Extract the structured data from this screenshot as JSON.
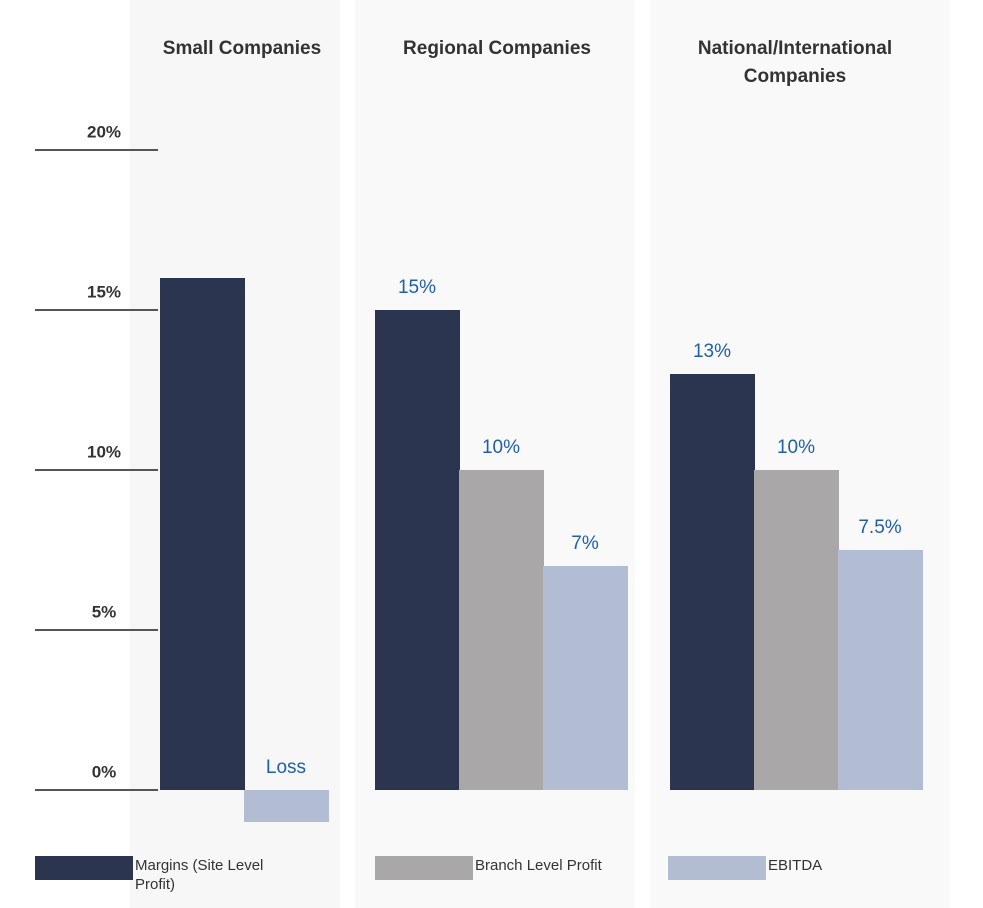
{
  "chart_data": {
    "type": "bar",
    "categories": [
      "Small Companies",
      "Regional Companies",
      "National/International Companies"
    ],
    "series": [
      {
        "name": "Margins (Site Level Profit)",
        "color": "#2b3550",
        "values": [
          16,
          15,
          13
        ],
        "value_labels": [
          null,
          "15%",
          "13%"
        ]
      },
      {
        "name": "Branch Level Profit",
        "color": "#a9a7a7",
        "values": [
          null,
          10,
          10
        ],
        "value_labels": [
          null,
          "10%",
          "10%"
        ]
      },
      {
        "name": "EBITDA",
        "color": "#b2bdd4",
        "values": [
          -1,
          7,
          7.5
        ],
        "value_labels": [
          "Loss",
          "7%",
          "7.5%"
        ]
      }
    ],
    "ylim": [
      -1.1,
      20
    ],
    "yticks": [
      {
        "value": 0,
        "label": "0%"
      },
      {
        "value": 5,
        "label": "5%"
      },
      {
        "value": 10,
        "label": "10%"
      },
      {
        "value": 15,
        "label": "15%"
      },
      {
        "value": 20,
        "label": "20%"
      }
    ]
  }
}
